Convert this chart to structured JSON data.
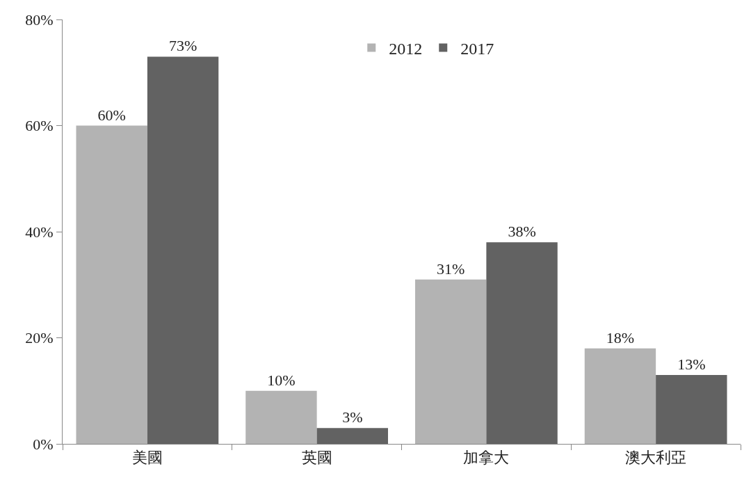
{
  "chart_data": {
    "type": "bar",
    "categories": [
      "美國",
      "英國",
      "加拿大",
      "澳大利亞"
    ],
    "series": [
      {
        "name": "2012",
        "color": "#b3b3b3",
        "values": [
          60,
          10,
          31,
          18
        ],
        "value_labels": [
          "60%",
          "10%",
          "31%",
          "18%"
        ]
      },
      {
        "name": "2017",
        "color": "#626262",
        "values": [
          73,
          3,
          38,
          13
        ],
        "value_labels": [
          "73%",
          "3%",
          "38%",
          "13%"
        ]
      }
    ],
    "ylim": [
      0,
      80
    ],
    "yticks": [
      {
        "value": 0,
        "label": "0%"
      },
      {
        "value": 20,
        "label": "20%"
      },
      {
        "value": 40,
        "label": "40%"
      },
      {
        "value": 60,
        "label": "60%"
      },
      {
        "value": 80,
        "label": "80%"
      }
    ],
    "legend": "top right"
  }
}
